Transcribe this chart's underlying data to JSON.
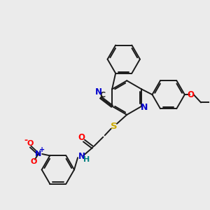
{
  "background_color": "#ebebeb",
  "bond_color": "#1a1a1a",
  "atom_colors": {
    "N": "#0000cc",
    "O": "#ff0000",
    "S": "#ccaa00",
    "C_label": "#1a1a1a",
    "H": "#008080"
  },
  "figsize": [
    3.0,
    3.0
  ],
  "dpi": 100
}
